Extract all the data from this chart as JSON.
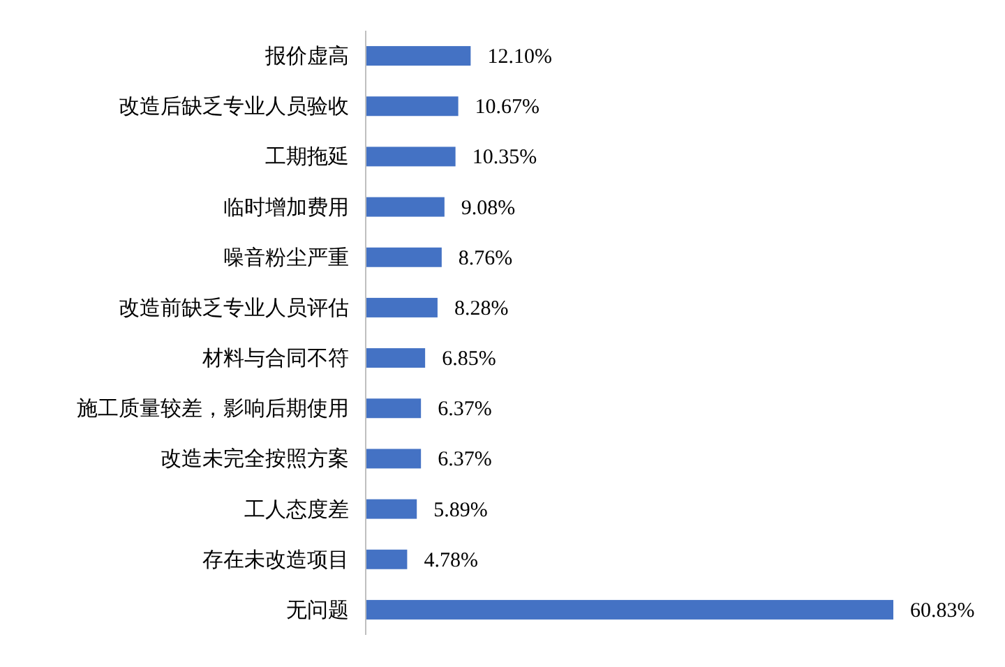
{
  "chart_data": {
    "type": "bar",
    "orientation": "horizontal",
    "categories": [
      "报价虚高",
      "改造后缺乏专业人员验收",
      "工期拖延",
      "临时增加费用",
      "噪音粉尘严重",
      "改造前缺乏专业人员评估",
      "材料与合同不符",
      "施工质量较差，影响后期使用",
      "改造未完全按照方案",
      "工人态度差",
      "存在未改造项目",
      "无问题"
    ],
    "values": [
      12.1,
      10.67,
      10.35,
      9.08,
      8.76,
      8.28,
      6.85,
      6.37,
      6.37,
      5.89,
      4.78,
      60.83
    ],
    "value_labels": [
      "12.10%",
      "10.67%",
      "10.35%",
      "9.08%",
      "8.76%",
      "8.28%",
      "6.85%",
      "6.37%",
      "6.37%",
      "5.89%",
      "4.78%",
      "60.83%"
    ],
    "color": "#4472c4"
  }
}
